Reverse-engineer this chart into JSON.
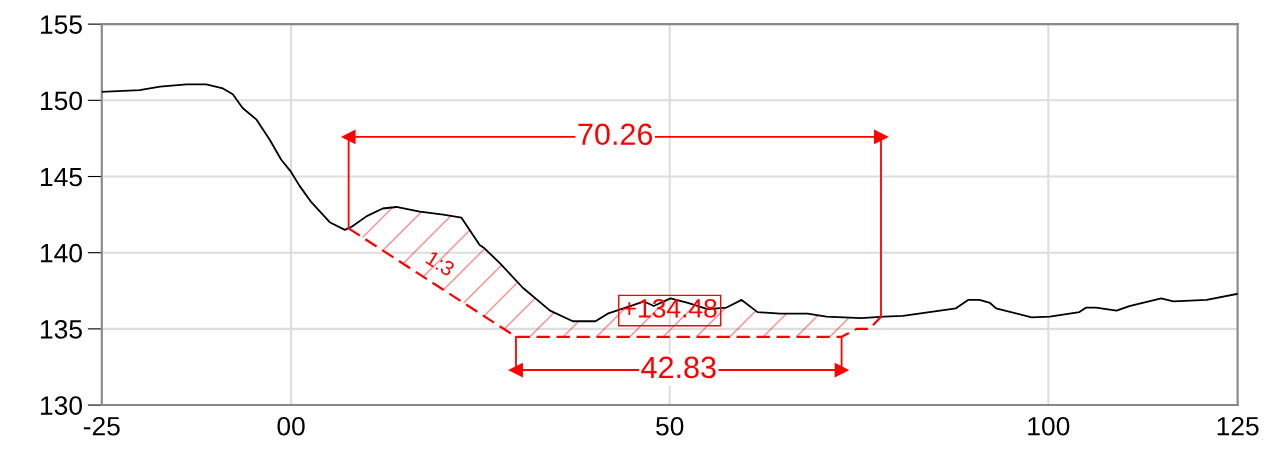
{
  "chart_data": {
    "type": "line",
    "xlim": [
      -25,
      125
    ],
    "ylim": [
      130,
      155
    ],
    "xticks": [
      -25,
      {
        "value": 0,
        "label": "00"
      },
      50,
      100,
      125
    ],
    "yticks": [
      130,
      135,
      140,
      145,
      150,
      155
    ],
    "grid": true,
    "series": [
      {
        "color": "#000000",
        "line_style": "solid",
        "x": [
          -25,
          -20,
          -17.3,
          -13.8,
          -11.2,
          -9.0,
          -7.7,
          -6.4,
          -4.6,
          -2.8,
          -1.3,
          0,
          1.1,
          2.7,
          5.1,
          7.1,
          8.0,
          10.0,
          12.1,
          13.9,
          17.0,
          20.1,
          22.5,
          24.9,
          25.5,
          27.6,
          30.6,
          34.2,
          37.2,
          40.2,
          41.8,
          44.8,
          46.6,
          47.9,
          50.1,
          52.4,
          55.0,
          57.5,
          59.5,
          61.6,
          64.6,
          68.2,
          70.7,
          75.3,
          78.3,
          80.8,
          84.3,
          87.8,
          89.4,
          90.9,
          92.3,
          93.1,
          97.8,
          100.2,
          104.1,
          105.0,
          106.3,
          109.0,
          110.7,
          114.9,
          116.5,
          120.9,
          125
        ],
        "values": [
          150.56,
          150.67,
          150.9,
          151.04,
          151.04,
          150.78,
          150.4,
          149.5,
          148.75,
          147.4,
          146.1,
          145.3,
          144.4,
          143.3,
          142.0,
          141.5,
          141.7,
          142.4,
          142.9,
          143.0,
          142.7,
          142.5,
          142.3,
          140.5,
          140.3,
          139.3,
          137.7,
          136.2,
          135.5,
          135.5,
          136.0,
          136.5,
          136.8,
          136.5,
          137.0,
          136.7,
          136.3,
          136.4,
          136.9,
          136.1,
          136.0,
          136.0,
          135.8,
          135.7,
          135.8,
          135.85,
          136.1,
          136.35,
          136.9,
          136.9,
          136.7,
          136.35,
          135.75,
          135.8,
          136.1,
          136.4,
          136.4,
          136.2,
          136.5,
          137.0,
          136.8,
          136.9,
          137.3
        ]
      },
      {
        "color": "#ff0000",
        "line_style": "dashed",
        "x": [
          7.6,
          29.7,
          72.7,
          74.7,
          76.4,
          77.9
        ],
        "values": [
          141.6,
          134.48,
          134.48,
          135.0,
          135.0,
          135.8
        ]
      },
      {
        "color": "#ff0000",
        "line_style": "solid",
        "marker": "triangle",
        "x": [
          7.6,
          7.6,
          77.9,
          77.9
        ],
        "values": [
          141.6,
          147.6,
          147.6,
          135.8
        ]
      },
      {
        "color": "#ff0000",
        "line_style": "solid",
        "marker": "triangle",
        "x": [
          29.7,
          29.7,
          72.7,
          72.7
        ],
        "values": [
          134.48,
          132.3,
          132.3,
          134.48
        ]
      }
    ],
    "annotations": [
      {
        "text": "70.26",
        "x": 42.8,
        "y": 147.6
      },
      {
        "text": "42.83",
        "x": 51.2,
        "y": 132.3
      },
      "+134.48",
      "1:3"
    ]
  }
}
